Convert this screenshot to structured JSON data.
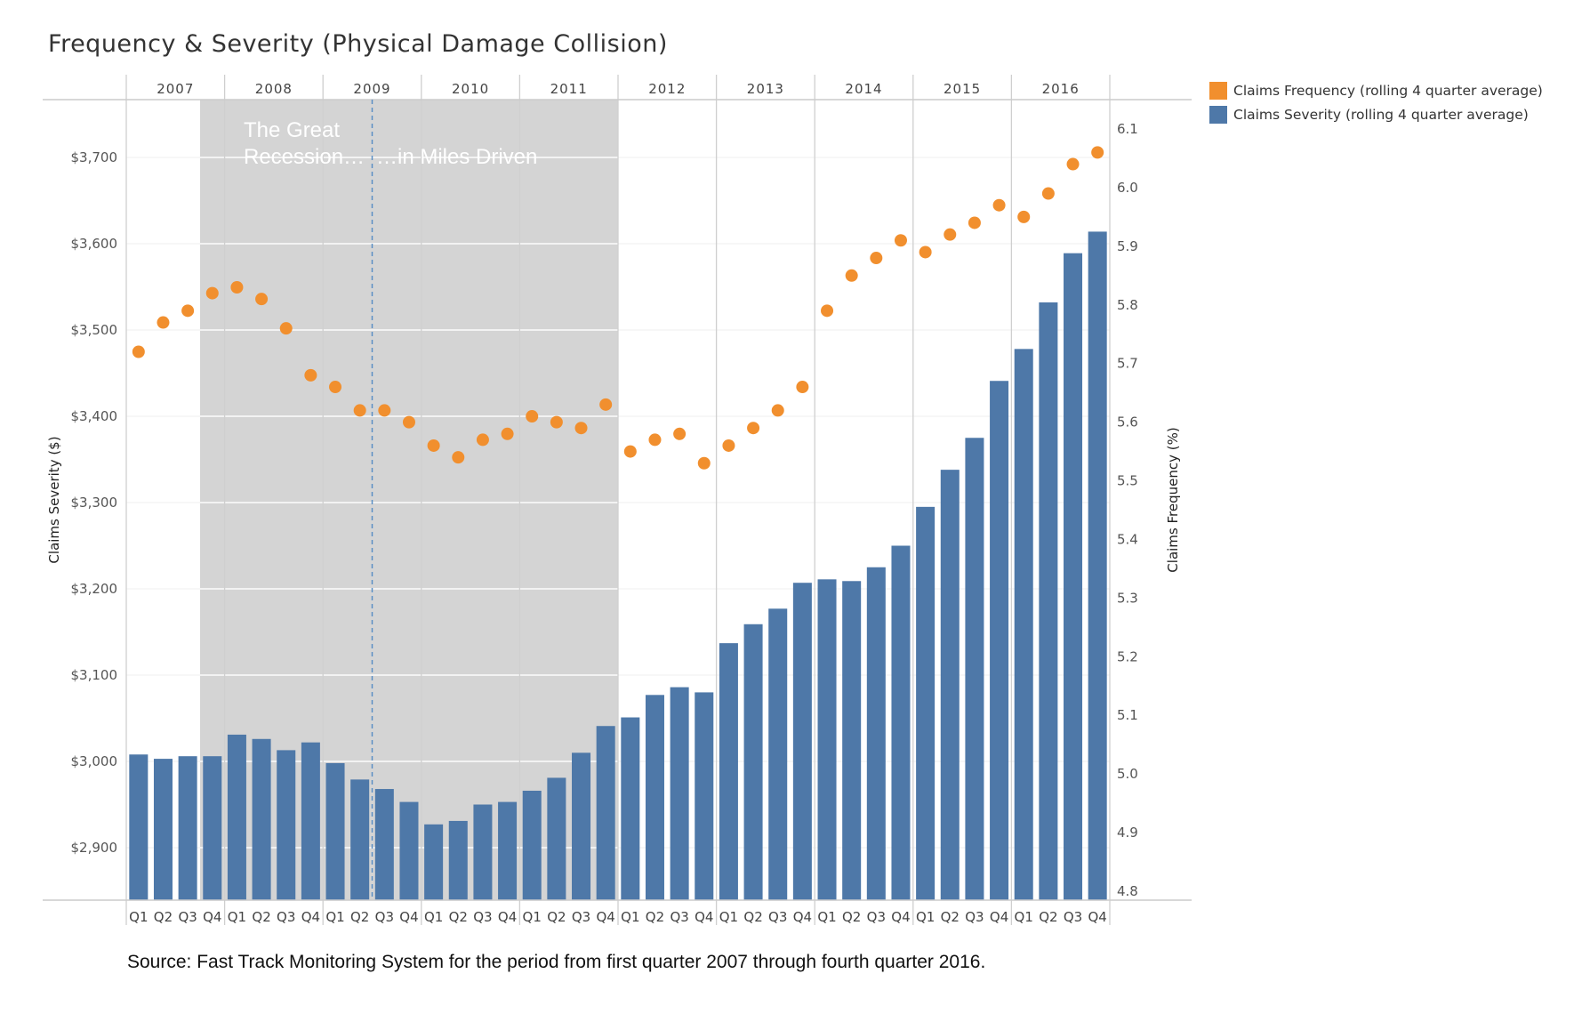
{
  "chart_data": {
    "type": "bar+scatter",
    "title": "Frequency & Severity (Physical Damage Collision)",
    "source": "Source: Fast Track Monitoring System for the period from first quarter 2007 through fourth quarter 2016.",
    "years": [
      "2007",
      "2008",
      "2009",
      "2010",
      "2011",
      "2012",
      "2013",
      "2014",
      "2015",
      "2016"
    ],
    "quarter_labels": [
      "Q1",
      "Q2",
      "Q3",
      "Q4"
    ],
    "left_axis": {
      "label": "Claims Severity ($)",
      "min": 2840,
      "max": 3780,
      "ticks": [
        2900,
        3000,
        3100,
        3200,
        3300,
        3400,
        3500,
        3600,
        3700
      ],
      "tick_labels": [
        "$2,900",
        "$3,000",
        "$3,100",
        "$3,200",
        "$3,300",
        "$3,400",
        "$3,500",
        "$3,600",
        "$3,700"
      ]
    },
    "right_axis": {
      "label": "Claims Frequency (%)",
      "min": 4.8,
      "max": 6.16,
      "ticks": [
        4.8,
        4.9,
        5.0,
        5.1,
        5.2,
        5.3,
        5.4,
        5.5,
        5.6,
        5.7,
        5.8,
        5.9,
        6.0,
        6.1
      ],
      "tick_labels": [
        "4.8",
        "4.9",
        "5.0",
        "5.1",
        "5.2",
        "5.3",
        "5.4",
        "5.5",
        "5.6",
        "5.7",
        "5.8",
        "5.9",
        "6.0",
        "6.1"
      ]
    },
    "series": [
      {
        "name": "Claims Severity (rolling 4 quarter average)",
        "type": "bar",
        "color": "#4e78a8",
        "axis": "left",
        "values": [
          3008,
          3003,
          3006,
          3006,
          3031,
          3026,
          3013,
          3022,
          2998,
          2979,
          2968,
          2953,
          2927,
          2931,
          2950,
          2953,
          2966,
          2981,
          3010,
          3041,
          3051,
          3077,
          3086,
          3080,
          3137,
          3159,
          3177,
          3207,
          3211,
          3209,
          3225,
          3250,
          3295,
          3338,
          3375,
          3441,
          3478,
          3532,
          3589,
          3614
        ]
      },
      {
        "name": "Claims Frequency (rolling 4 quarter average)",
        "type": "scatter",
        "color": "#f18f2e",
        "axis": "right",
        "values": [
          5.72,
          5.77,
          5.79,
          5.82,
          5.83,
          5.81,
          5.76,
          5.68,
          5.66,
          5.62,
          5.62,
          5.6,
          5.56,
          5.54,
          5.57,
          5.58,
          5.61,
          5.6,
          5.59,
          5.63,
          5.55,
          5.57,
          5.58,
          5.53,
          5.56,
          5.59,
          5.62,
          5.66,
          5.79,
          5.85,
          5.88,
          5.91,
          5.89,
          5.92,
          5.94,
          5.97,
          5.95,
          5.99,
          6.04,
          6.06
        ]
      }
    ],
    "shaded_region": {
      "from_index": 3,
      "to_index": 19,
      "color": "#d4d4d4"
    },
    "annotations": {
      "recession_label": [
        "The Great",
        "Recession…"
      ],
      "miles_label": "…in Miles Driven",
      "dashed_line_after_index": 9
    }
  }
}
